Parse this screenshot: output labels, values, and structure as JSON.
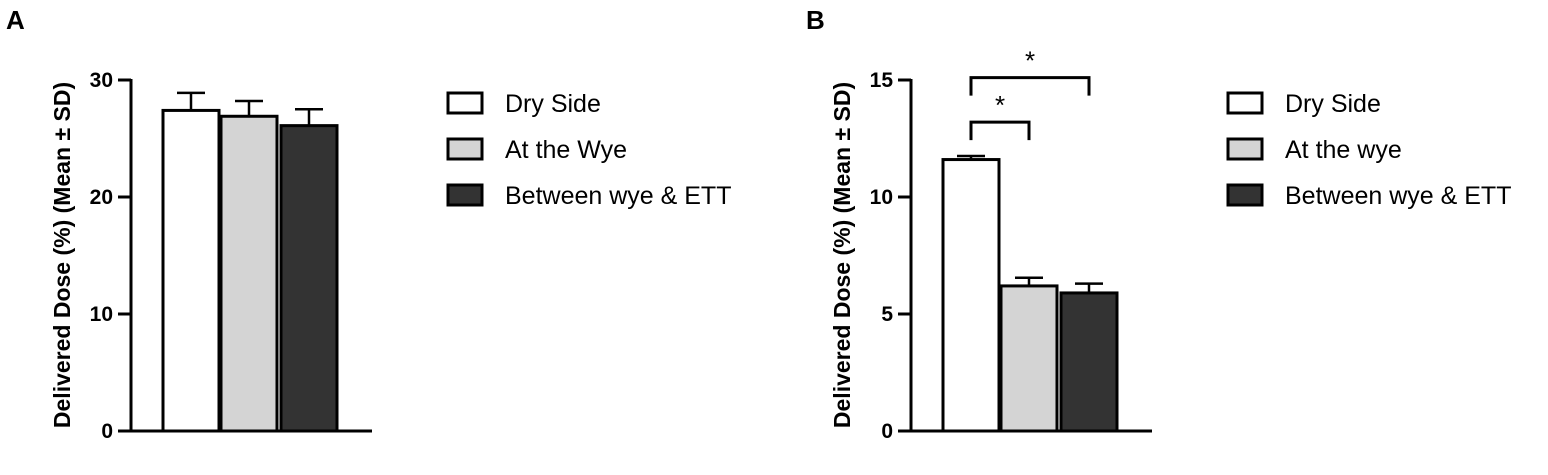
{
  "chart_data": [
    {
      "panel": "A",
      "type": "bar",
      "ylabel": "Delivered Dose (%) (Mean ± SD)",
      "ylim": [
        0,
        30
      ],
      "yticks": [
        0,
        10,
        20,
        30
      ],
      "categories": [
        "Dry Side",
        "At the Wye",
        "Between wye & ETT"
      ],
      "values": [
        27.4,
        26.9,
        26.1
      ],
      "errors": [
        1.5,
        1.3,
        1.4
      ],
      "colors": [
        "#ffffff",
        "#d4d4d4",
        "#333333"
      ],
      "legend": [
        "Dry Side",
        "At the Wye",
        "Between wye & ETT"
      ],
      "legend_position": "right",
      "significance": []
    },
    {
      "panel": "B",
      "type": "bar",
      "ylabel": "Delivered Dose (%) (Mean ± SD)",
      "ylim": [
        0,
        15
      ],
      "yticks": [
        0,
        5,
        10,
        15
      ],
      "categories": [
        "Dry Side",
        "At the wye",
        "Between wye & ETT"
      ],
      "values": [
        11.6,
        6.2,
        5.9
      ],
      "errors": [
        0.15,
        0.35,
        0.4
      ],
      "colors": [
        "#ffffff",
        "#d4d4d4",
        "#333333"
      ],
      "legend": [
        "Dry Side",
        "At the wye",
        "Between wye & ETT"
      ],
      "legend_position": "right",
      "significance": [
        {
          "from": 0,
          "to": 1,
          "level": 13.2,
          "label": "*"
        },
        {
          "from": 0,
          "to": 2,
          "level": 15.1,
          "label": "*"
        }
      ]
    }
  ]
}
